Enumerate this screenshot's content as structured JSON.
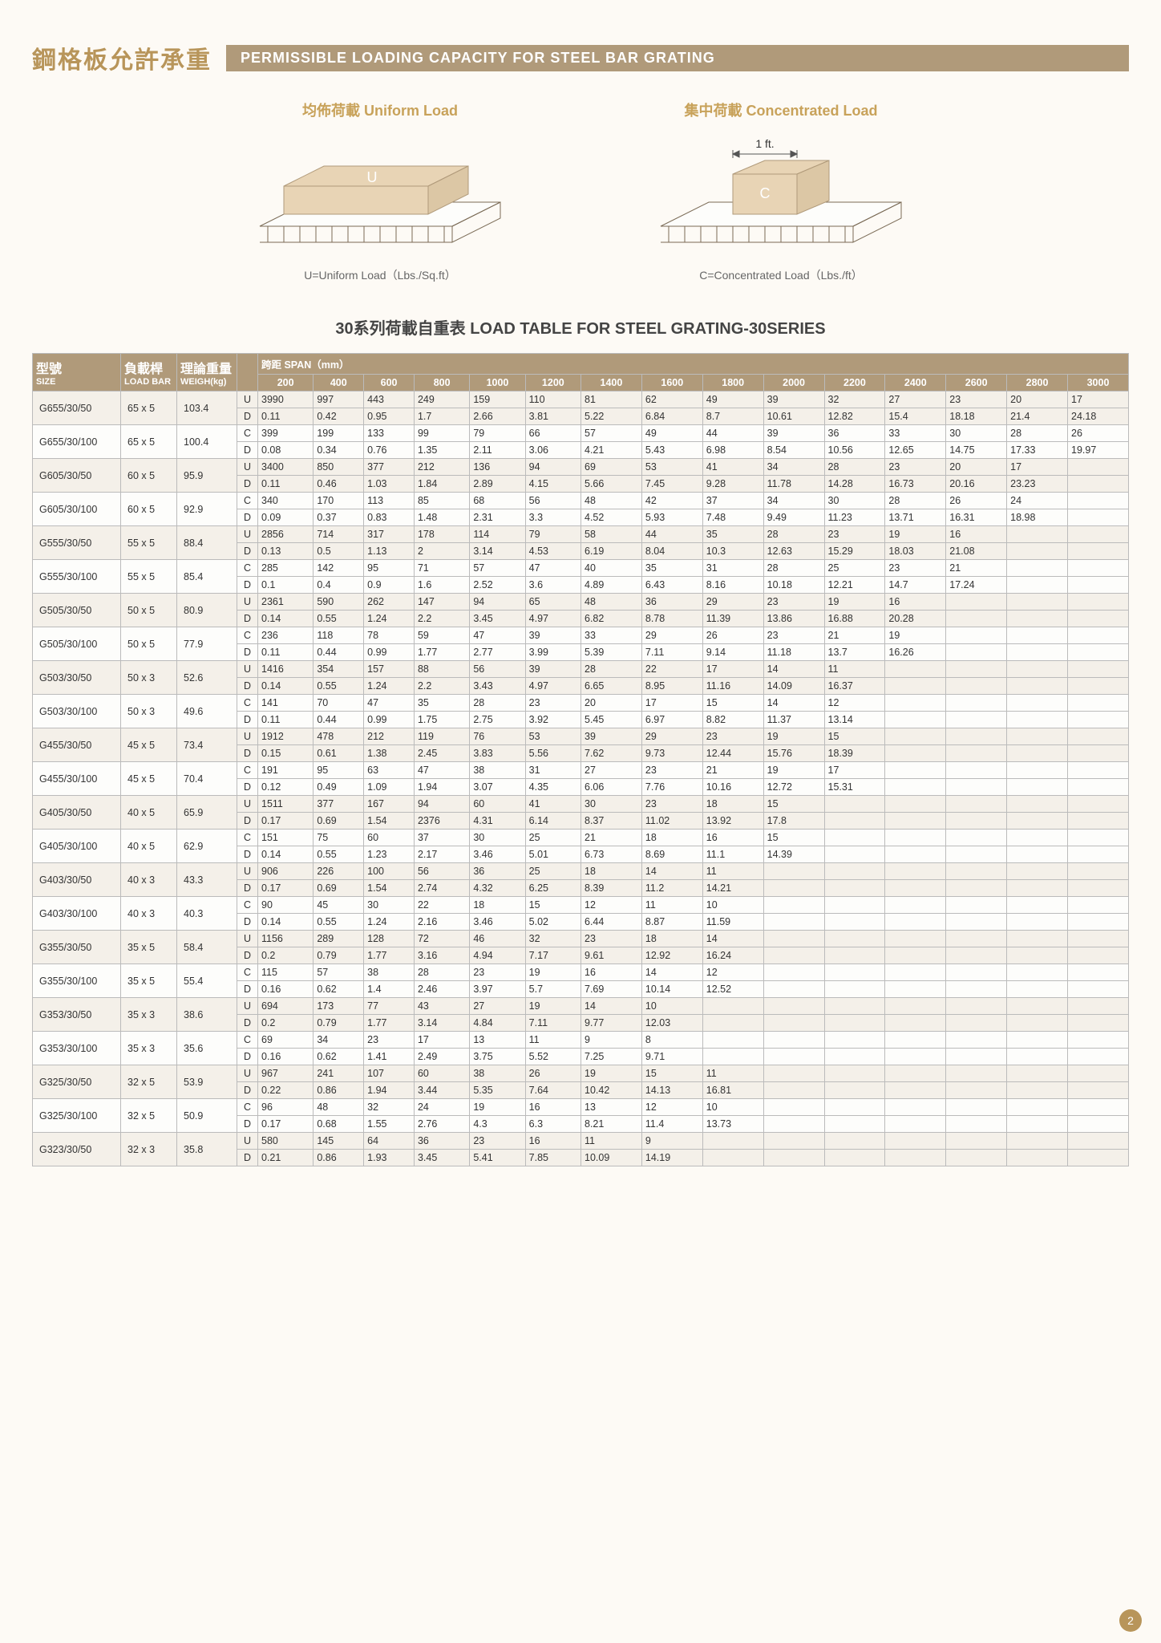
{
  "header": {
    "title_cn": "鋼格板允許承重",
    "title_en": "PERMISSIBLE LOADING CAPACITY FOR STEEL BAR GRATING"
  },
  "diagrams": {
    "uniform": {
      "title": "均佈荷載 Uniform Load",
      "label": "U",
      "caption": "U=Uniform Load（Lbs./Sq.ft）"
    },
    "concentrated": {
      "title": "集中荷載  Concentrated Load",
      "label": "C",
      "ft_label": "1 ft.",
      "caption": "C=Concentrated Load（Lbs./ft）"
    }
  },
  "subtitle": "30系列荷載自重表  LOAD TABLE FOR STEEL GRATING-30SERIES",
  "columns": {
    "size_cn": "型號",
    "size_en": "SIZE",
    "loadbar_cn": "負載桿",
    "loadbar_en": "LOAD BAR",
    "weight_cn": "理論重量",
    "weight_en": "WEIGH(kg)",
    "span_label": "跨距 SPAN（mm）",
    "spans": [
      "200",
      "400",
      "600",
      "800",
      "1000",
      "1200",
      "1400",
      "1600",
      "1800",
      "2000",
      "2200",
      "2400",
      "2600",
      "2800",
      "3000"
    ]
  },
  "rows": [
    {
      "size": "G655/30/50",
      "loadbar": "65 x 5",
      "weight": "103.4",
      "ud": [
        "U",
        "D"
      ],
      "u": [
        "3990",
        "997",
        "443",
        "249",
        "159",
        "110",
        "81",
        "62",
        "49",
        "39",
        "32",
        "27",
        "23",
        "20",
        "17"
      ],
      "d": [
        "0.11",
        "0.42",
        "0.95",
        "1.7",
        "2.66",
        "3.81",
        "5.22",
        "6.84",
        "8.7",
        "10.61",
        "12.82",
        "15.4",
        "18.18",
        "21.4",
        "24.18"
      ]
    },
    {
      "size": "G655/30/100",
      "loadbar": "65 x 5",
      "weight": "100.4",
      "ud": [
        "C",
        "D"
      ],
      "u": [
        "399",
        "199",
        "133",
        "99",
        "79",
        "66",
        "57",
        "49",
        "44",
        "39",
        "36",
        "33",
        "30",
        "28",
        "26"
      ],
      "d": [
        "0.08",
        "0.34",
        "0.76",
        "1.35",
        "2.11",
        "3.06",
        "4.21",
        "5.43",
        "6.98",
        "8.54",
        "10.56",
        "12.65",
        "14.75",
        "17.33",
        "19.97"
      ]
    },
    {
      "size": "G605/30/50",
      "loadbar": "60 x 5",
      "weight": "95.9",
      "ud": [
        "U",
        "D"
      ],
      "u": [
        "3400",
        "850",
        "377",
        "212",
        "136",
        "94",
        "69",
        "53",
        "41",
        "34",
        "28",
        "23",
        "20",
        "17",
        ""
      ],
      "d": [
        "0.11",
        "0.46",
        "1.03",
        "1.84",
        "2.89",
        "4.15",
        "5.66",
        "7.45",
        "9.28",
        "11.78",
        "14.28",
        "16.73",
        "20.16",
        "23.23",
        ""
      ]
    },
    {
      "size": "G605/30/100",
      "loadbar": "60 x 5",
      "weight": "92.9",
      "ud": [
        "C",
        "D"
      ],
      "u": [
        "340",
        "170",
        "113",
        "85",
        "68",
        "56",
        "48",
        "42",
        "37",
        "34",
        "30",
        "28",
        "26",
        "24",
        ""
      ],
      "d": [
        "0.09",
        "0.37",
        "0.83",
        "1.48",
        "2.31",
        "3.3",
        "4.52",
        "5.93",
        "7.48",
        "9.49",
        "11.23",
        "13.71",
        "16.31",
        "18.98",
        ""
      ]
    },
    {
      "size": "G555/30/50",
      "loadbar": "55 x 5",
      "weight": "88.4",
      "ud": [
        "U",
        "D"
      ],
      "u": [
        "2856",
        "714",
        "317",
        "178",
        "114",
        "79",
        "58",
        "44",
        "35",
        "28",
        "23",
        "19",
        "16",
        "",
        ""
      ],
      "d": [
        "0.13",
        "0.5",
        "1.13",
        "2",
        "3.14",
        "4.53",
        "6.19",
        "8.04",
        "10.3",
        "12.63",
        "15.29",
        "18.03",
        "21.08",
        "",
        ""
      ]
    },
    {
      "size": "G555/30/100",
      "loadbar": "55 x 5",
      "weight": "85.4",
      "ud": [
        "C",
        "D"
      ],
      "u": [
        "285",
        "142",
        "95",
        "71",
        "57",
        "47",
        "40",
        "35",
        "31",
        "28",
        "25",
        "23",
        "21",
        "",
        ""
      ],
      "d": [
        "0.1",
        "0.4",
        "0.9",
        "1.6",
        "2.52",
        "3.6",
        "4.89",
        "6.43",
        "8.16",
        "10.18",
        "12.21",
        "14.7",
        "17.24",
        "",
        ""
      ]
    },
    {
      "size": "G505/30/50",
      "loadbar": "50 x 5",
      "weight": "80.9",
      "ud": [
        "U",
        "D"
      ],
      "u": [
        "2361",
        "590",
        "262",
        "147",
        "94",
        "65",
        "48",
        "36",
        "29",
        "23",
        "19",
        "16",
        "",
        "",
        ""
      ],
      "d": [
        "0.14",
        "0.55",
        "1.24",
        "2.2",
        "3.45",
        "4.97",
        "6.82",
        "8.78",
        "11.39",
        "13.86",
        "16.88",
        "20.28",
        "",
        "",
        ""
      ]
    },
    {
      "size": "G505/30/100",
      "loadbar": "50 x 5",
      "weight": "77.9",
      "ud": [
        "C",
        "D"
      ],
      "u": [
        "236",
        "118",
        "78",
        "59",
        "47",
        "39",
        "33",
        "29",
        "26",
        "23",
        "21",
        "19",
        "",
        "",
        ""
      ],
      "d": [
        "0.11",
        "0.44",
        "0.99",
        "1.77",
        "2.77",
        "3.99",
        "5.39",
        "7.11",
        "9.14",
        "11.18",
        "13.7",
        "16.26",
        "",
        "",
        ""
      ]
    },
    {
      "size": "G503/30/50",
      "loadbar": "50 x 3",
      "weight": "52.6",
      "ud": [
        "U",
        "D"
      ],
      "u": [
        "1416",
        "354",
        "157",
        "88",
        "56",
        "39",
        "28",
        "22",
        "17",
        "14",
        "11",
        "",
        "",
        "",
        ""
      ],
      "d": [
        "0.14",
        "0.55",
        "1.24",
        "2.2",
        "3.43",
        "4.97",
        "6.65",
        "8.95",
        "11.16",
        "14.09",
        "16.37",
        "",
        "",
        "",
        ""
      ]
    },
    {
      "size": "G503/30/100",
      "loadbar": "50 x 3",
      "weight": "49.6",
      "ud": [
        "C",
        "D"
      ],
      "u": [
        "141",
        "70",
        "47",
        "35",
        "28",
        "23",
        "20",
        "17",
        "15",
        "14",
        "12",
        "",
        "",
        "",
        ""
      ],
      "d": [
        "0.11",
        "0.44",
        "0.99",
        "1.75",
        "2.75",
        "3.92",
        "5.45",
        "6.97",
        "8.82",
        "11.37",
        "13.14",
        "",
        "",
        "",
        ""
      ]
    },
    {
      "size": "G455/30/50",
      "loadbar": "45 x 5",
      "weight": "73.4",
      "ud": [
        "U",
        "D"
      ],
      "u": [
        "1912",
        "478",
        "212",
        "119",
        "76",
        "53",
        "39",
        "29",
        "23",
        "19",
        "15",
        "",
        "",
        "",
        ""
      ],
      "d": [
        "0.15",
        "0.61",
        "1.38",
        "2.45",
        "3.83",
        "5.56",
        "7.62",
        "9.73",
        "12.44",
        "15.76",
        "18.39",
        "",
        "",
        "",
        ""
      ]
    },
    {
      "size": "G455/30/100",
      "loadbar": "45 x 5",
      "weight": "70.4",
      "ud": [
        "C",
        "D"
      ],
      "u": [
        "191",
        "95",
        "63",
        "47",
        "38",
        "31",
        "27",
        "23",
        "21",
        "19",
        "17",
        "",
        "",
        "",
        ""
      ],
      "d": [
        "0.12",
        "0.49",
        "1.09",
        "1.94",
        "3.07",
        "4.35",
        "6.06",
        "7.76",
        "10.16",
        "12.72",
        "15.31",
        "",
        "",
        "",
        ""
      ]
    },
    {
      "size": "G405/30/50",
      "loadbar": "40 x 5",
      "weight": "65.9",
      "ud": [
        "U",
        "D"
      ],
      "u": [
        "1511",
        "377",
        "167",
        "94",
        "60",
        "41",
        "30",
        "23",
        "18",
        "15",
        "",
        "",
        "",
        "",
        ""
      ],
      "d": [
        "0.17",
        "0.69",
        "1.54",
        "2376",
        "4.31",
        "6.14",
        "8.37",
        "11.02",
        "13.92",
        "17.8",
        "",
        "",
        "",
        "",
        ""
      ]
    },
    {
      "size": "G405/30/100",
      "loadbar": "40 x 5",
      "weight": "62.9",
      "ud": [
        "C",
        "D"
      ],
      "u": [
        "151",
        "75",
        "60",
        "37",
        "30",
        "25",
        "21",
        "18",
        "16",
        "15",
        "",
        "",
        "",
        "",
        ""
      ],
      "d": [
        "0.14",
        "0.55",
        "1.23",
        "2.17",
        "3.46",
        "5.01",
        "6.73",
        "8.69",
        "11.1",
        "14.39",
        "",
        "",
        "",
        "",
        ""
      ]
    },
    {
      "size": "G403/30/50",
      "loadbar": "40 x 3",
      "weight": "43.3",
      "ud": [
        "U",
        "D"
      ],
      "u": [
        "906",
        "226",
        "100",
        "56",
        "36",
        "25",
        "18",
        "14",
        "11",
        "",
        "",
        "",
        "",
        "",
        ""
      ],
      "d": [
        "0.17",
        "0.69",
        "1.54",
        "2.74",
        "4.32",
        "6.25",
        "8.39",
        "11.2",
        "14.21",
        "",
        "",
        "",
        "",
        "",
        ""
      ]
    },
    {
      "size": "G403/30/100",
      "loadbar": "40 x 3",
      "weight": "40.3",
      "ud": [
        "C",
        "D"
      ],
      "u": [
        "90",
        "45",
        "30",
        "22",
        "18",
        "15",
        "12",
        "11",
        "10",
        "",
        "",
        "",
        "",
        "",
        ""
      ],
      "d": [
        "0.14",
        "0.55",
        "1.24",
        "2.16",
        "3.46",
        "5.02",
        "6.44",
        "8.87",
        "11.59",
        "",
        "",
        "",
        "",
        "",
        ""
      ]
    },
    {
      "size": "G355/30/50",
      "loadbar": "35 x 5",
      "weight": "58.4",
      "ud": [
        "U",
        "D"
      ],
      "u": [
        "1156",
        "289",
        "128",
        "72",
        "46",
        "32",
        "23",
        "18",
        "14",
        "",
        "",
        "",
        "",
        "",
        ""
      ],
      "d": [
        "0.2",
        "0.79",
        "1.77",
        "3.16",
        "4.94",
        "7.17",
        "9.61",
        "12.92",
        "16.24",
        "",
        "",
        "",
        "",
        "",
        ""
      ]
    },
    {
      "size": "G355/30/100",
      "loadbar": "35 x 5",
      "weight": "55.4",
      "ud": [
        "C",
        "D"
      ],
      "u": [
        "115",
        "57",
        "38",
        "28",
        "23",
        "19",
        "16",
        "14",
        "12",
        "",
        "",
        "",
        "",
        "",
        ""
      ],
      "d": [
        "0.16",
        "0.62",
        "1.4",
        "2.46",
        "3.97",
        "5.7",
        "7.69",
        "10.14",
        "12.52",
        "",
        "",
        "",
        "",
        "",
        ""
      ]
    },
    {
      "size": "G353/30/50",
      "loadbar": "35 x 3",
      "weight": "38.6",
      "ud": [
        "U",
        "D"
      ],
      "u": [
        "694",
        "173",
        "77",
        "43",
        "27",
        "19",
        "14",
        "10",
        "",
        "",
        "",
        "",
        "",
        "",
        ""
      ],
      "d": [
        "0.2",
        "0.79",
        "1.77",
        "3.14",
        "4.84",
        "7.11",
        "9.77",
        "12.03",
        "",
        "",
        "",
        "",
        "",
        "",
        ""
      ]
    },
    {
      "size": "G353/30/100",
      "loadbar": "35 x 3",
      "weight": "35.6",
      "ud": [
        "C",
        "D"
      ],
      "u": [
        "69",
        "34",
        "23",
        "17",
        "13",
        "11",
        "9",
        "8",
        "",
        "",
        "",
        "",
        "",
        "",
        ""
      ],
      "d": [
        "0.16",
        "0.62",
        "1.41",
        "2.49",
        "3.75",
        "5.52",
        "7.25",
        "9.71",
        "",
        "",
        "",
        "",
        "",
        "",
        ""
      ]
    },
    {
      "size": "G325/30/50",
      "loadbar": "32 x 5",
      "weight": "53.9",
      "ud": [
        "U",
        "D"
      ],
      "u": [
        "967",
        "241",
        "107",
        "60",
        "38",
        "26",
        "19",
        "15",
        "11",
        "",
        "",
        "",
        "",
        "",
        ""
      ],
      "d": [
        "0.22",
        "0.86",
        "1.94",
        "3.44",
        "5.35",
        "7.64",
        "10.42",
        "14.13",
        "16.81",
        "",
        "",
        "",
        "",
        "",
        ""
      ]
    },
    {
      "size": "G325/30/100",
      "loadbar": "32 x 5",
      "weight": "50.9",
      "ud": [
        "C",
        "D"
      ],
      "u": [
        "96",
        "48",
        "32",
        "24",
        "19",
        "16",
        "13",
        "12",
        "10",
        "",
        "",
        "",
        "",
        "",
        ""
      ],
      "d": [
        "0.17",
        "0.68",
        "1.55",
        "2.76",
        "4.3",
        "6.3",
        "8.21",
        "11.4",
        "13.73",
        "",
        "",
        "",
        "",
        "",
        ""
      ]
    },
    {
      "size": "G323/30/50",
      "loadbar": "32 x 3",
      "weight": "35.8",
      "ud": [
        "U",
        "D"
      ],
      "u": [
        "580",
        "145",
        "64",
        "36",
        "23",
        "16",
        "11",
        "9",
        "",
        "",
        "",
        "",
        "",
        "",
        ""
      ],
      "d": [
        "0.21",
        "0.86",
        "1.93",
        "3.45",
        "5.41",
        "7.85",
        "10.09",
        "14.19",
        "",
        "",
        "",
        "",
        "",
        "",
        ""
      ]
    }
  ],
  "page_number": "2",
  "style": {
    "header_bg": "#b09a7a",
    "accent": "#b8955a",
    "row_even_bg": "#f4f0e9",
    "row_odd_bg": "#fdfdfb"
  }
}
